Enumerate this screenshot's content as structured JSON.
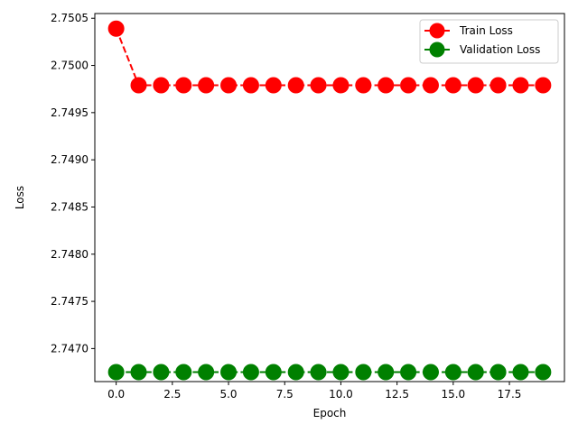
{
  "chart_data": {
    "type": "line",
    "xlabel": "Epoch",
    "ylabel": "Loss",
    "xlim": [
      -0.95,
      19.95
    ],
    "ylim": [
      2.74665,
      2.75055
    ],
    "x_ticks": [
      0.0,
      2.5,
      5.0,
      7.5,
      10.0,
      12.5,
      15.0,
      17.5
    ],
    "x_tick_labels": [
      "0.0",
      "2.5",
      "5.0",
      "7.5",
      "10.0",
      "12.5",
      "15.0",
      "17.5"
    ],
    "y_ticks": [
      2.747,
      2.7475,
      2.748,
      2.7485,
      2.749,
      2.7495,
      2.75,
      2.7505
    ],
    "y_tick_labels": [
      "2.7470",
      "2.7475",
      "2.7480",
      "2.7485",
      "2.7490",
      "2.7495",
      "2.7500",
      "2.7505"
    ],
    "grid": false,
    "legend_position": "top-right",
    "x": [
      0,
      1,
      2,
      3,
      4,
      5,
      6,
      7,
      8,
      9,
      10,
      11,
      12,
      13,
      14,
      15,
      16,
      17,
      18,
      19
    ],
    "series": [
      {
        "name": "Train Loss",
        "color": "#ff0000",
        "line_style": "dashed",
        "marker": "circle",
        "values": [
          2.75039,
          2.74979,
          2.74979,
          2.74979,
          2.74979,
          2.74979,
          2.74979,
          2.74979,
          2.74979,
          2.74979,
          2.74979,
          2.74979,
          2.74979,
          2.74979,
          2.74979,
          2.74979,
          2.74979,
          2.74979,
          2.74979,
          2.74979
        ]
      },
      {
        "name": "Validation Loss",
        "color": "#008000",
        "line_style": "dashed",
        "marker": "circle",
        "values": [
          2.74675,
          2.74675,
          2.74675,
          2.74675,
          2.74675,
          2.74675,
          2.74675,
          2.74675,
          2.74675,
          2.74675,
          2.74675,
          2.74675,
          2.74675,
          2.74675,
          2.74675,
          2.74675,
          2.74675,
          2.74675,
          2.74675,
          2.74675
        ]
      }
    ]
  }
}
